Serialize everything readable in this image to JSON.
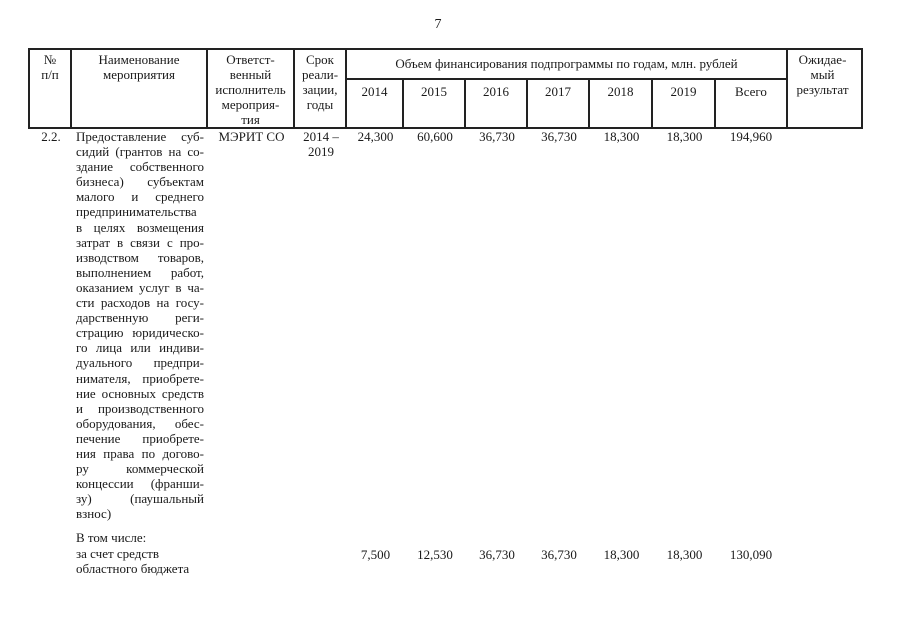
{
  "colors": {
    "ink": "#1a1a1a",
    "paper": "#ffffff"
  },
  "page_number": "7",
  "table": {
    "header": {
      "num": "№\nп/п",
      "name": "Наименование\nмероприятия",
      "executor": "Ответст-\nвенный\nисполнитель\nмероприя-\nтия",
      "term": "Срок\nреали-\nзации,\nгоды",
      "financing": "Объем финансирования подпрограммы по годам, млн. рублей",
      "years": [
        "2014",
        "2015",
        "2016",
        "2017",
        "2018",
        "2019",
        "Всего"
      ],
      "result": "Ожидае-\nмый\nрезультат"
    },
    "row": {
      "num": "2.2.",
      "name": "Предоставление суб-\nсидий (грантов на со-\nздание собственного\nбизнеса) субъектам\nмалого и среднего\nпредпринимательства\nв целях возмещения\nзатрат в связи с про-\nизводством товаров,\nвыполнением работ,\nоказанием услуг в ча-\nсти расходов на госу-\nдарственную реги-\nстрацию юридическо-\nго лица или индиви-\nдуального предпри-\nнимателя, приобрете-\nние основных средств\nи производственного\nоборудования, обес-\nпечение приобрете-\nния права по догово-\nру коммерческой\nконцессии (франши-\nзу) (паушальный\nвзнос)",
      "executor": "МЭРИТ СО",
      "term": "2014 –\n2019",
      "values": [
        "24,300",
        "60,600",
        "36,730",
        "36,730",
        "18,300",
        "18,300",
        "194,960"
      ],
      "including": "В том числе:",
      "subrow": {
        "label": "за счет средств\nобластного бюджета",
        "values": [
          "7,500",
          "12,530",
          "36,730",
          "36,730",
          "18,300",
          "18,300",
          "130,090"
        ]
      }
    }
  }
}
